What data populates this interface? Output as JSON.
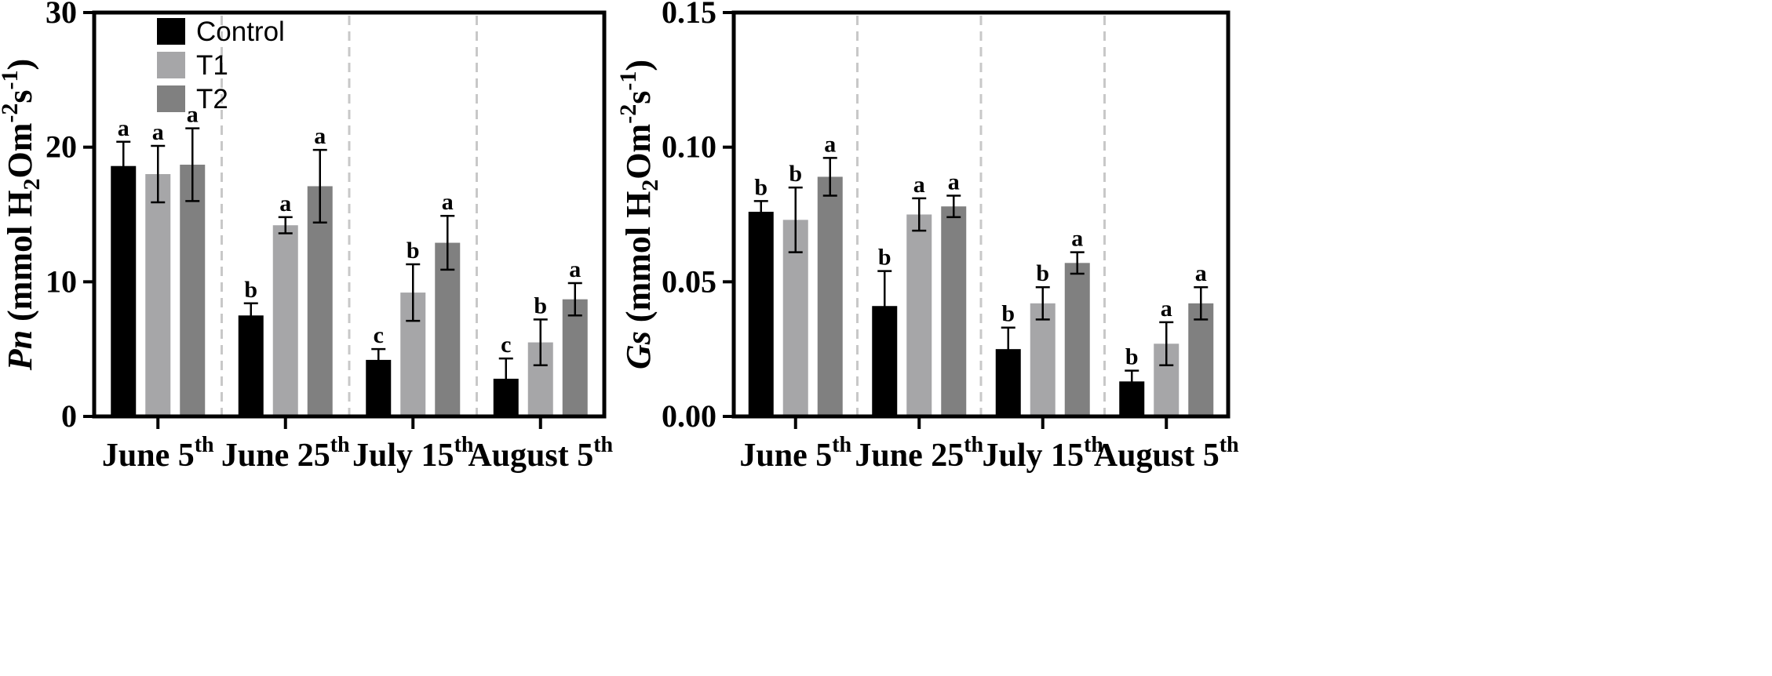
{
  "chart_data": [
    {
      "type": "bar",
      "ylabel": "Pn (mmol H2Om-2s-1)",
      "ylabel_var": "Pn",
      "ylabel_unit_a": "(mmol H",
      "ylabel_unit_b": "Om",
      "ylabel_unit_c": "s",
      "ylabel_sub": "2",
      "ylabel_sup1": "-2",
      "ylabel_sup2": "-1",
      "ylim": [
        0,
        30
      ],
      "yticks": [
        0,
        10,
        20,
        30
      ],
      "ytick_labels": [
        "0",
        "10",
        "20",
        "30"
      ],
      "categories": [
        {
          "main": "June 5",
          "sup": "th"
        },
        {
          "main": "June 25",
          "sup": "th"
        },
        {
          "main": "July 15",
          "sup": "th"
        },
        {
          "main": "August 5",
          "sup": "th"
        }
      ],
      "series": [
        {
          "name": "Control",
          "color": "#000000",
          "values": [
            18.6,
            7.5,
            4.2,
            2.8
          ],
          "errors": [
            1.8,
            0.9,
            0.8,
            1.5
          ],
          "letters": [
            "a",
            "b",
            "c",
            "c"
          ]
        },
        {
          "name": "T1",
          "color": "#a6a6a8",
          "values": [
            18.0,
            14.2,
            9.2,
            5.5
          ],
          "errors": [
            2.1,
            0.6,
            2.1,
            1.7
          ],
          "letters": [
            "a",
            "a",
            "b",
            "b"
          ]
        },
        {
          "name": "T2",
          "color": "#808080",
          "values": [
            18.7,
            17.1,
            12.9,
            8.7
          ],
          "errors": [
            2.7,
            2.7,
            2.0,
            1.2
          ],
          "letters": [
            "a",
            "a",
            "a",
            "a"
          ]
        }
      ],
      "legend": "top-left"
    },
    {
      "type": "bar",
      "ylabel": "Gs (mmol H2Om-2s-1)",
      "ylabel_var": "Gs",
      "ylabel_unit_a": "(mmol H",
      "ylabel_unit_b": "Om",
      "ylabel_unit_c": "s",
      "ylabel_sub": "2",
      "ylabel_sup1": "-2",
      "ylabel_sup2": "-1",
      "ylim": [
        0,
        0.15
      ],
      "yticks": [
        0,
        0.05,
        0.1,
        0.15
      ],
      "ytick_labels": [
        "0.00",
        "0.05",
        "0.10",
        "0.15"
      ],
      "categories": [
        {
          "main": "June 5",
          "sup": "th"
        },
        {
          "main": "June 25",
          "sup": "th"
        },
        {
          "main": "July 15",
          "sup": "th"
        },
        {
          "main": "August 5",
          "sup": "th"
        }
      ],
      "series": [
        {
          "name": "Control",
          "color": "#000000",
          "values": [
            0.076,
            0.041,
            0.025,
            0.013
          ],
          "errors": [
            0.004,
            0.013,
            0.008,
            0.004
          ],
          "letters": [
            "b",
            "b",
            "b",
            "b"
          ]
        },
        {
          "name": "T1",
          "color": "#a6a6a8",
          "values": [
            0.073,
            0.075,
            0.042,
            0.027
          ],
          "errors": [
            0.012,
            0.006,
            0.006,
            0.008
          ],
          "letters": [
            "b",
            "a",
            "b",
            "a"
          ]
        },
        {
          "name": "T2",
          "color": "#808080",
          "values": [
            0.089,
            0.078,
            0.057,
            0.042
          ],
          "errors": [
            0.007,
            0.004,
            0.004,
            0.006
          ],
          "letters": [
            "a",
            "a",
            "a",
            "a"
          ]
        }
      ]
    }
  ]
}
